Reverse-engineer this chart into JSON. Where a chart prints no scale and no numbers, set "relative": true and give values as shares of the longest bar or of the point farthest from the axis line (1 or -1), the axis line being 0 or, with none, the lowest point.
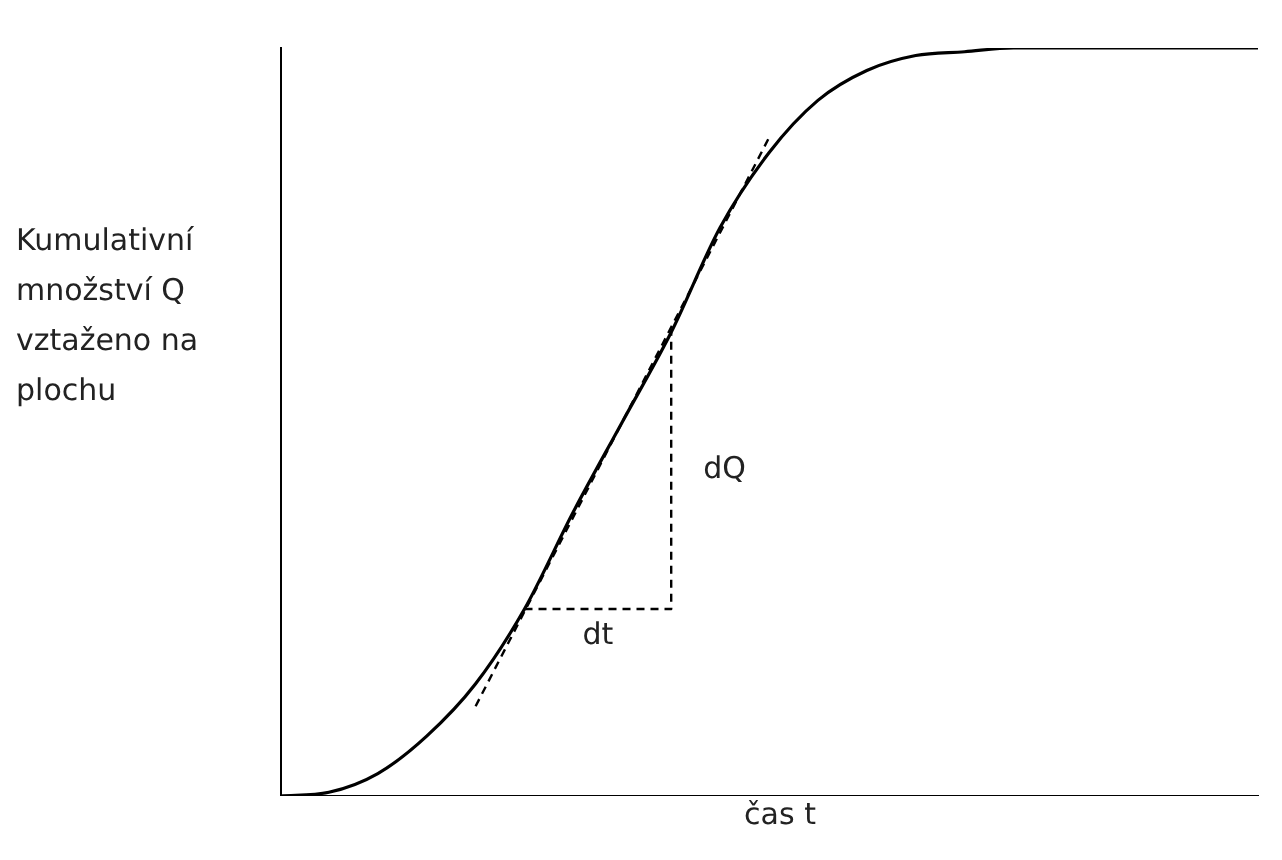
{
  "chart_data": {
    "type": "line",
    "relative": true,
    "xlabel": "čas t",
    "ylabel": "Kumulativní množství Q vztaženo na plochu",
    "categories": [
      null,
      null,
      null,
      null,
      null,
      null,
      null,
      null,
      null,
      null,
      null,
      null,
      null,
      null,
      null,
      null,
      null,
      null,
      null,
      null,
      null
    ],
    "series": [
      {
        "color": "#000000",
        "values": [
          0,
          0.005,
          0.03,
          0.08,
          0.15,
          0.25,
          0.38,
          0.5,
          0.62,
          0.76,
          0.86,
          0.93,
          0.97,
          0.99,
          0.995,
          1,
          1,
          1,
          1,
          1,
          1
        ]
      },
      {
        "color": "#000000",
        "line_style": "dashed",
        "values": [
          null,
          null,
          null,
          null,
          0.12,
          null,
          null,
          null,
          null,
          null,
          0.88,
          null,
          null,
          null,
          null,
          null,
          null,
          null,
          null,
          null,
          null
        ]
      },
      {
        "type": "step",
        "color": "#000000",
        "line_style": "dashed",
        "values": [
          null,
          null,
          null,
          null,
          null,
          0.25,
          null,
          null,
          0.62,
          null,
          null,
          null,
          null,
          null,
          null,
          null,
          null,
          null,
          null,
          null,
          null
        ]
      }
    ],
    "annotations": [
      "dQ",
      "dt"
    ],
    "grid": false,
    "legend": false,
    "marker": "none"
  }
}
